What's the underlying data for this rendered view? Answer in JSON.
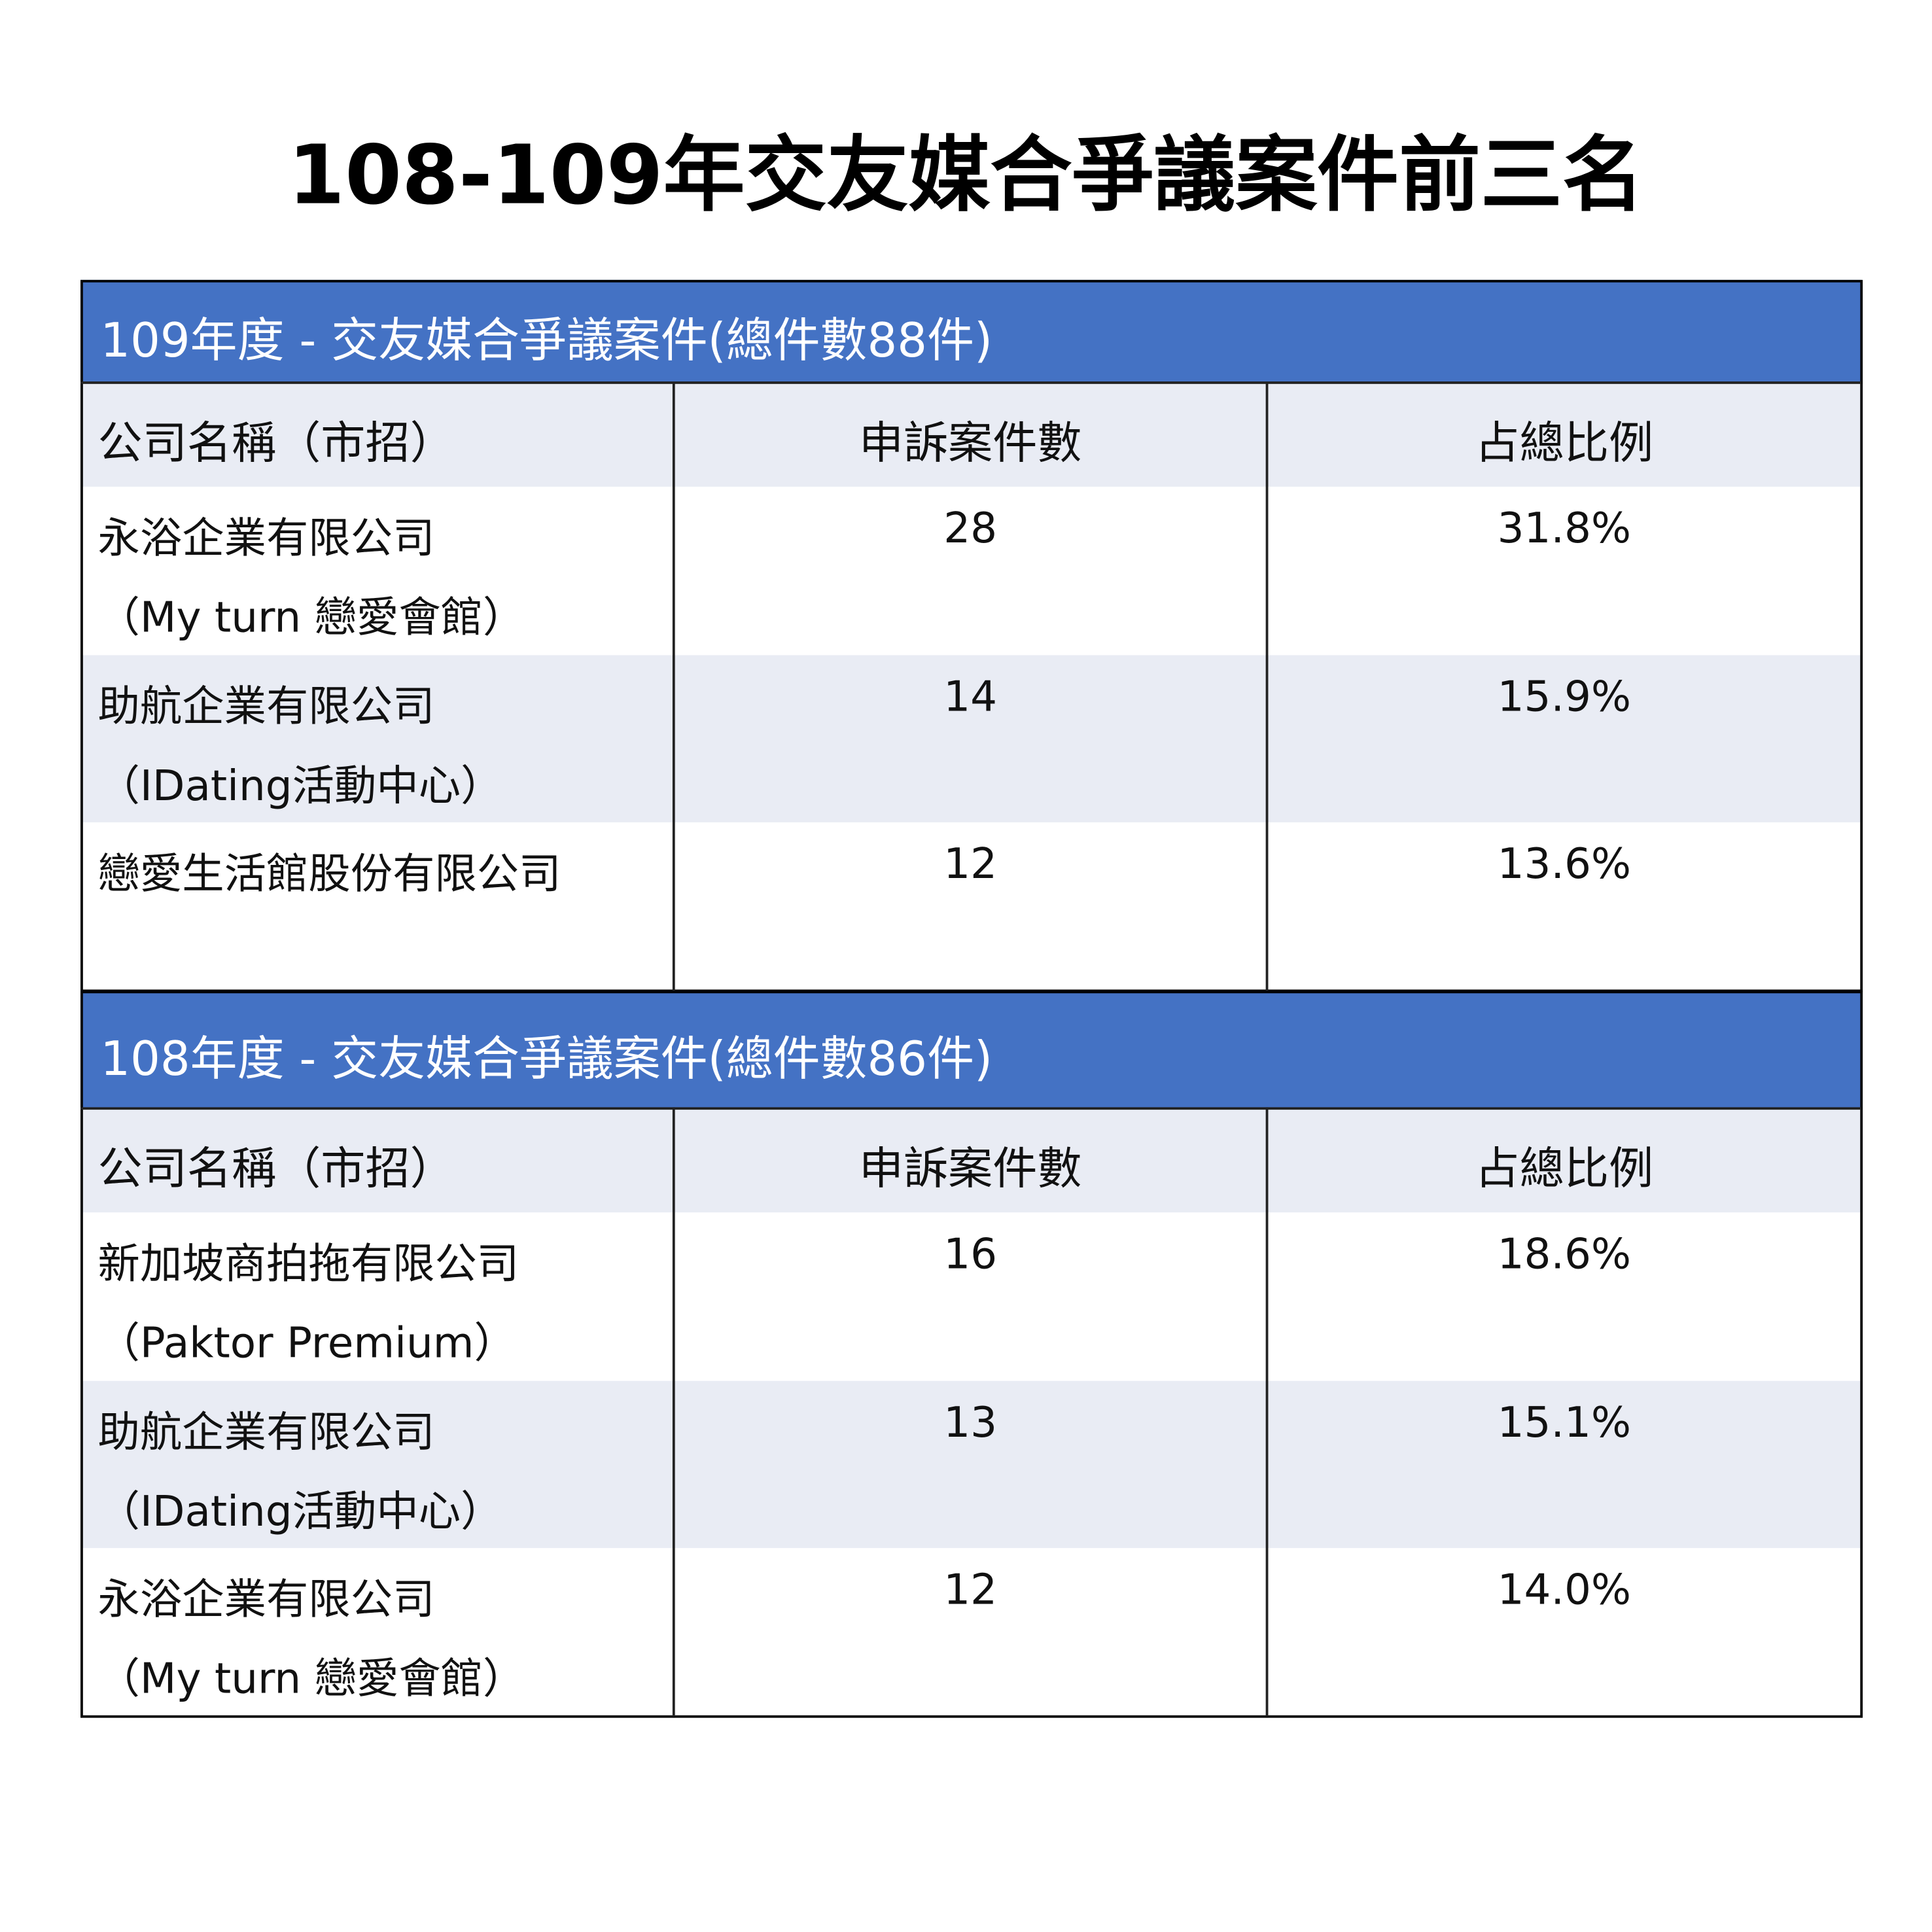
{
  "title": "108-109年交友媒合爭議案件前三名",
  "tables": [
    {
      "caption": "109年度 - 交友媒合爭議案件(總件數88件)",
      "header": [
        "公司名稱（市招）",
        "申訴案件數",
        "占總比例"
      ],
      "rows": [
        {
          "company": [
            "永浴企業有限公司",
            "（My turn 戀愛會館）"
          ],
          "cases": 28,
          "share": "31.8%"
        },
        {
          "company": [
            "助航企業有限公司",
            "（IDating活動中心）"
          ],
          "cases": 14,
          "share": "15.9%"
        },
        {
          "company": [
            "戀愛生活館股份有限公司"
          ],
          "cases": 12,
          "share": "13.6%"
        }
      ]
    },
    {
      "caption": "108年度 - 交友媒合爭議案件(總件數86件)",
      "header": [
        "公司名稱（市招）",
        "申訴案件數",
        "占總比例"
      ],
      "rows": [
        {
          "company": [
            "新加坡商拍拖有限公司",
            "（Paktor Premium）"
          ],
          "cases": 16,
          "share": "18.6%"
        },
        {
          "company": [
            "助航企業有限公司",
            "（IDating活動中心）"
          ],
          "cases": 13,
          "share": "15.1%"
        },
        {
          "company": [
            "永浴企業有限公司",
            "（My turn 戀愛會館）"
          ],
          "cases": 12,
          "share": "14.0%"
        }
      ]
    }
  ]
}
